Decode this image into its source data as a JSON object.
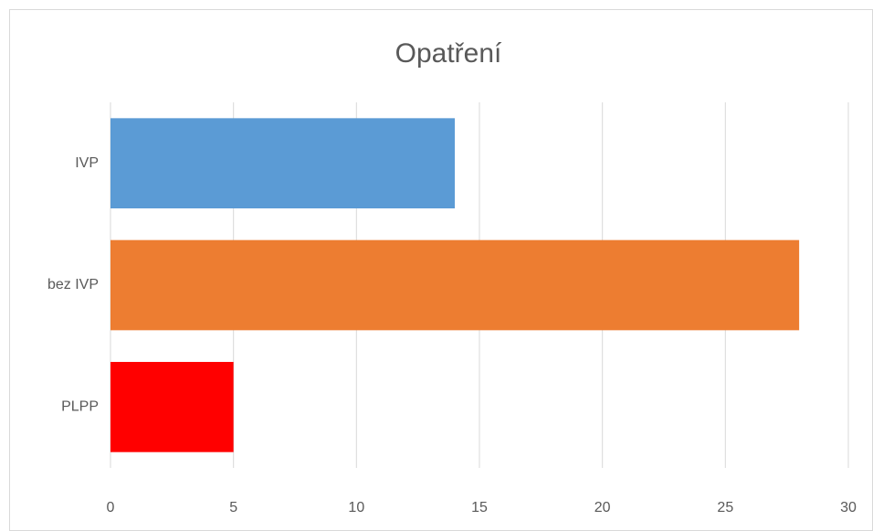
{
  "chart_data": {
    "type": "bar",
    "orientation": "horizontal",
    "title": "Opatření",
    "categories": [
      "IVP",
      "bez IVP",
      "PLPP"
    ],
    "values": [
      14,
      28,
      5
    ],
    "colors": [
      "#5b9bd5",
      "#ed7d31",
      "#ff0000"
    ],
    "xlim": [
      0,
      30
    ],
    "xticks": [
      0,
      5,
      10,
      15,
      20,
      25,
      30
    ],
    "grid": true
  }
}
